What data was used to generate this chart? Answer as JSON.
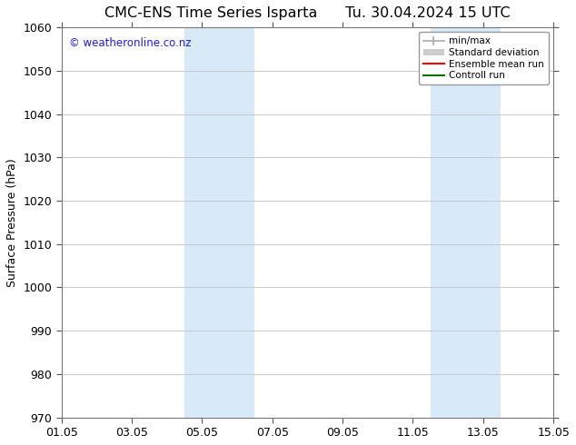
{
  "title": "CMC-ENS Time Series Isparta      Tu. 30.04.2024 15 UTC",
  "ylabel": "Surface Pressure (hPa)",
  "ylim": [
    970,
    1060
  ],
  "yticks": [
    970,
    980,
    990,
    1000,
    1010,
    1020,
    1030,
    1040,
    1050,
    1060
  ],
  "xtick_labels": [
    "01.05",
    "03.05",
    "05.05",
    "07.05",
    "09.05",
    "11.05",
    "13.05",
    "15.05"
  ],
  "xtick_positions": [
    0,
    2,
    4,
    6,
    8,
    10,
    12,
    14
  ],
  "xlim": [
    0,
    14
  ],
  "shaded_bands": [
    {
      "xmin": 3.5,
      "xmax": 5.5,
      "color": "#d8eaf8"
    },
    {
      "xmin": 10.5,
      "xmax": 12.5,
      "color": "#d8eaf8"
    }
  ],
  "watermark": "© weatheronline.co.nz",
  "watermark_color": "#1a1aff",
  "background_color": "#ffffff",
  "plot_bg_color": "#ffffff",
  "grid_color": "#c8c8c8",
  "title_fontsize": 11.5,
  "axis_label_fontsize": 9,
  "tick_fontsize": 9,
  "legend_minmax_color": "#aaaaaa",
  "legend_std_color": "#cccccc",
  "legend_ens_color": "#ff0000",
  "legend_ctrl_color": "#007700"
}
